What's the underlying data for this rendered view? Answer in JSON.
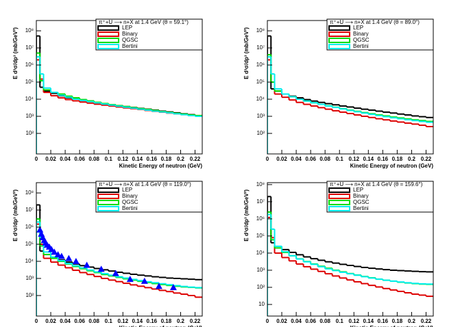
{
  "chart_data": [
    {
      "type": "histogram",
      "title": "π⁺+U ⟶ n+X at 1.4 GeV (θ = 59.1°)",
      "x_label": "Kinetic Energy of neutron (GeV)",
      "y_label": "E d³σ/dp³ (mb/GeV²)",
      "log_y": true,
      "bins": [
        0,
        0.005,
        0.01,
        0.02,
        0.03,
        0.04,
        0.05,
        0.06,
        0.07,
        0.08,
        0.09,
        0.1,
        0.11,
        0.12,
        0.13,
        0.14,
        0.15,
        0.16,
        0.17,
        0.18,
        0.19,
        0.2,
        0.21,
        0.22,
        0.23
      ],
      "xlim": [
        0,
        0.23
      ],
      "xticks": [
        0,
        0.02,
        0.04,
        0.06,
        0.08,
        0.1,
        0.12,
        0.14,
        0.16,
        0.18,
        0.2,
        0.22
      ],
      "ylim": [
        6.3,
        400000000.0
      ],
      "yticks": [
        {
          "value": 100,
          "label": "10²"
        },
        {
          "value": 1000,
          "label": "10³"
        },
        {
          "value": 10000,
          "label": "10⁴"
        },
        {
          "value": 100000,
          "label": "10⁵"
        },
        {
          "value": 1000000,
          "label": "10⁶"
        },
        {
          "value": 10000000,
          "label": "10⁷"
        },
        {
          "value": 100000000,
          "label": "10⁸"
        }
      ],
      "series": [
        {
          "name": "LEP",
          "color": "#000000",
          "values": [
            50000000.0,
            50000.0,
            30000.0,
            22000.0,
            16000.0,
            12000.0,
            10000.0,
            8500,
            7200,
            6200,
            5400,
            4800,
            4200,
            3700,
            3300,
            2900,
            2600,
            2300,
            2000,
            1800,
            1600,
            1400,
            1250,
            1100
          ]
        },
        {
          "name": "Binary",
          "color": "#dd0000",
          "values": [
            2000000.0,
            150000.0,
            25000.0,
            16000.0,
            12000.0,
            9500,
            8000,
            6800,
            5900,
            5100,
            4500,
            4000,
            3500,
            3100,
            2800,
            2500,
            2200,
            1950,
            1750,
            1550,
            1400,
            1250,
            1100,
            1000
          ]
        },
        {
          "name": "QGSC",
          "color": "#00dd00",
          "values": [
            5000000.0,
            120000.0,
            35000.0,
            25000.0,
            20000.0,
            15000.0,
            12000.0,
            9500,
            8000,
            6600,
            5600,
            4800,
            4200,
            3700,
            3200,
            2800,
            2500,
            2200,
            1900,
            1700,
            1500,
            1350,
            1200,
            1100
          ]
        },
        {
          "name": "Bertini",
          "color": "#00eeee",
          "values": [
            3000000.0,
            300000.0,
            45000.0,
            25000.0,
            17000.0,
            13000.0,
            10000.0,
            8500,
            7200,
            6100,
            5200,
            4500,
            3900,
            3400,
            3000,
            2600,
            2300,
            2000,
            1800,
            1600,
            1400,
            1250,
            1100,
            1000
          ]
        }
      ]
    },
    {
      "type": "histogram",
      "title": "π⁺+U ⟶ n+X at 1.4 GeV (θ = 89.0°)",
      "x_label": "Kinetic Energy of neutron (GeV)",
      "y_label": "E d³σ/dp³ (mb/GeV²)",
      "log_y": true,
      "bins": [
        0,
        0.005,
        0.01,
        0.02,
        0.03,
        0.04,
        0.05,
        0.06,
        0.07,
        0.08,
        0.09,
        0.1,
        0.11,
        0.12,
        0.13,
        0.14,
        0.15,
        0.16,
        0.17,
        0.18,
        0.19,
        0.2,
        0.21,
        0.22,
        0.23
      ],
      "xlim": [
        0,
        0.23
      ],
      "xticks": [
        0,
        0.02,
        0.04,
        0.06,
        0.08,
        0.1,
        0.12,
        0.14,
        0.16,
        0.18,
        0.2,
        0.22
      ],
      "ylim": [
        6.3,
        400000000.0
      ],
      "yticks": [
        {
          "value": 100,
          "label": "10²"
        },
        {
          "value": 1000,
          "label": "10³"
        },
        {
          "value": 10000,
          "label": "10⁴"
        },
        {
          "value": 100000,
          "label": "10⁵"
        },
        {
          "value": 1000000,
          "label": "10⁶"
        },
        {
          "value": 10000000,
          "label": "10⁷"
        },
        {
          "value": 100000000,
          "label": "10⁸"
        }
      ],
      "series": [
        {
          "name": "LEP",
          "color": "#000000",
          "values": [
            50000000.0,
            40000.0,
            30000.0,
            20000.0,
            15000.0,
            12000.0,
            9500,
            7800,
            6500,
            5500,
            4700,
            4000,
            3500,
            3000,
            2600,
            2300,
            2000,
            1750,
            1550,
            1350,
            1200,
            1050,
            950,
            850
          ]
        },
        {
          "name": "Binary",
          "color": "#dd0000",
          "values": [
            2000000.0,
            100000.0,
            20000.0,
            13000.0,
            9000,
            6500,
            5000,
            4000,
            3200,
            2600,
            2100,
            1750,
            1450,
            1200,
            1000,
            850,
            720,
            620,
            530,
            460,
            400,
            350,
            300,
            250
          ]
        },
        {
          "name": "QGSC",
          "color": "#00dd00",
          "values": [
            4000000.0,
            100000.0,
            30000.0,
            20000.0,
            14000.0,
            10000.0,
            7800,
            6200,
            5000,
            4100,
            3400,
            2800,
            2300,
            1950,
            1650,
            1400,
            1200,
            1050,
            900,
            800,
            700,
            620,
            560,
            500
          ]
        },
        {
          "name": "Bertini",
          "color": "#00eeee",
          "values": [
            3000000.0,
            300000.0,
            40000.0,
            20000.0,
            14000.0,
            10000.0,
            7800,
            6200,
            5000,
            4000,
            3300,
            2700,
            2200,
            1850,
            1550,
            1300,
            1100,
            950,
            820,
            720,
            630,
            560,
            500,
            450
          ]
        }
      ]
    },
    {
      "type": "histogram",
      "title": "π⁺+U ⟶ n+X at 1.4 GeV (θ = 119.0°)",
      "x_label": "Kinetic Energy of neutron (GeV)",
      "y_label": "E d³σ/dp³ (mb/GeV²)",
      "log_y": true,
      "bins": [
        0,
        0.005,
        0.01,
        0.02,
        0.03,
        0.04,
        0.05,
        0.06,
        0.07,
        0.08,
        0.09,
        0.1,
        0.11,
        0.12,
        0.13,
        0.14,
        0.15,
        0.16,
        0.17,
        0.18,
        0.19,
        0.2,
        0.21,
        0.22,
        0.23
      ],
      "xlim": [
        0,
        0.23
      ],
      "xticks": [
        0,
        0.02,
        0.04,
        0.06,
        0.08,
        0.1,
        0.12,
        0.14,
        0.16,
        0.18,
        0.2,
        0.22
      ],
      "ylim": [
        6.3,
        400000000.0
      ],
      "yticks": [
        {
          "value": 100,
          "label": "10²"
        },
        {
          "value": 1000,
          "label": "10³"
        },
        {
          "value": 10000,
          "label": "10⁴"
        },
        {
          "value": 100000,
          "label": "10⁵"
        },
        {
          "value": 1000000,
          "label": "10⁶"
        },
        {
          "value": 10000000,
          "label": "10⁷"
        },
        {
          "value": 100000000,
          "label": "10⁸"
        }
      ],
      "series": [
        {
          "name": "LEP",
          "color": "#000000",
          "values": [
            20000000.0,
            40000.0,
            25000.0,
            17000.0,
            12000.0,
            9000,
            7000,
            5600,
            4600,
            3800,
            3200,
            2700,
            2300,
            2000,
            1750,
            1550,
            1400,
            1250,
            1150,
            1050,
            1000,
            950,
            900,
            850
          ]
        },
        {
          "name": "Binary",
          "color": "#dd0000",
          "values": [
            1500000.0,
            100000.0,
            15000.0,
            9000,
            6000,
            4200,
            3000,
            2200,
            1700,
            1300,
            1000,
            800,
            650,
            520,
            420,
            350,
            290,
            240,
            200,
            170,
            140,
            120,
            100,
            80
          ]
        },
        {
          "name": "QGSC",
          "color": "#00dd00",
          "values": [
            3000000.0,
            80000.0,
            25000.0,
            15000.0,
            10000.0,
            7000,
            5000,
            3700,
            2800,
            2200,
            1700,
            1400,
            1150,
            950,
            800,
            680,
            580,
            500,
            440,
            390,
            350,
            320,
            300,
            280
          ]
        },
        {
          "name": "Bertini",
          "color": "#00eeee",
          "values": [
            2000000.0,
            250000.0,
            35000.0,
            18000.0,
            11000.0,
            7500,
            5500,
            4100,
            3100,
            2400,
            1900,
            1550,
            1250,
            1050,
            880,
            750,
            640,
            560,
            490,
            430,
            380,
            340,
            310,
            290
          ]
        }
      ],
      "data_points": {
        "color": "#0000ff",
        "x": [
          0.005,
          0.007,
          0.009,
          0.011,
          0.013,
          0.015,
          0.018,
          0.021,
          0.025,
          0.03,
          0.035,
          0.045,
          0.055,
          0.07,
          0.09,
          0.11,
          0.13,
          0.15,
          0.17,
          0.19
        ],
        "values": [
          700000.0,
          400000.0,
          250000.0,
          170000.0,
          120000.0,
          90000.0,
          70000.0,
          50000.0,
          35000.0,
          25000.0,
          20000.0,
          15000.0,
          10000.0,
          6000,
          3500,
          2000,
          900,
          700,
          350,
          300
        ]
      }
    },
    {
      "type": "histogram",
      "title": "π⁺+U ⟶ n+X at 1.4 GeV (θ = 159.6°)",
      "x_label": "Kinetic Energy of neutron (GeV)",
      "y_label": "E d³σ/dp³ (mb/GeV²)",
      "log_y": true,
      "bins": [
        0,
        0.005,
        0.01,
        0.02,
        0.03,
        0.04,
        0.05,
        0.06,
        0.07,
        0.08,
        0.09,
        0.1,
        0.11,
        0.12,
        0.13,
        0.14,
        0.15,
        0.16,
        0.17,
        0.18,
        0.19,
        0.2,
        0.21,
        0.22,
        0.23
      ],
      "xlim": [
        0,
        0.23
      ],
      "xticks": [
        0,
        0.02,
        0.04,
        0.06,
        0.08,
        0.1,
        0.12,
        0.14,
        0.16,
        0.18,
        0.2,
        0.22
      ],
      "ylim": [
        2.1,
        130000000.0
      ],
      "yticks": [
        10,
        {
          "value": 100,
          "label": "10²"
        },
        {
          "value": 1000,
          "label": "10³"
        },
        {
          "value": 10000,
          "label": "10⁴"
        },
        {
          "value": 100000,
          "label": "10⁵"
        },
        {
          "value": 1000000,
          "label": "10⁶"
        },
        {
          "value": 10000000,
          "label": "10⁷"
        },
        {
          "value": 100000000,
          "label": "10⁸"
        }
      ],
      "series": [
        {
          "name": "LEP",
          "color": "#000000",
          "values": [
            20000000.0,
            40000.0,
            25000.0,
            16000.0,
            11000.0,
            8000,
            6000,
            4700,
            3800,
            3100,
            2600,
            2200,
            1900,
            1650,
            1450,
            1300,
            1180,
            1080,
            1000,
            950,
            900,
            860,
            820,
            800
          ]
        },
        {
          "name": "Binary",
          "color": "#dd0000",
          "values": [
            1200000.0,
            80000.0,
            10000.0,
            5500,
            3500,
            2300,
            1600,
            1150,
            850,
            620,
            460,
            350,
            270,
            210,
            165,
            130,
            105,
            85,
            70,
            58,
            48,
            40,
            35,
            30
          ]
        },
        {
          "name": "QGSC",
          "color": "#00dd00",
          "values": [
            2500000.0,
            60000.0,
            20000.0,
            11000.0,
            7000,
            4600,
            3200,
            2300,
            1700,
            1300,
            1000,
            800,
            640,
            520,
            430,
            360,
            300,
            260,
            230,
            200,
            180,
            165,
            155,
            150
          ]
        },
        {
          "name": "Bertini",
          "color": "#00eeee",
          "values": [
            1800000.0,
            250000.0,
            25000.0,
            12000.0,
            7000,
            4500,
            3100,
            2200,
            1600,
            1200,
            950,
            760,
            620,
            510,
            420,
            350,
            300,
            260,
            230,
            205,
            185,
            170,
            160,
            155
          ]
        }
      ]
    }
  ]
}
